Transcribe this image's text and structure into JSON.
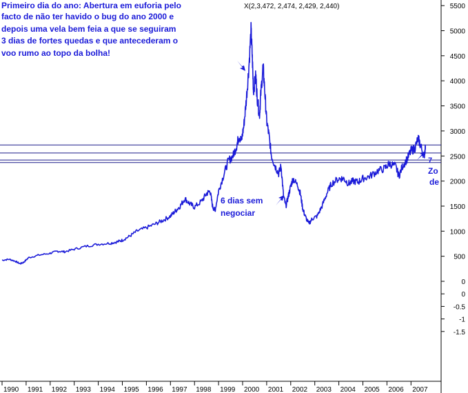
{
  "chart_data": {
    "type": "line",
    "title": "",
    "xlabel": "",
    "ylabel": "",
    "ohlc_readout": "X(2,3,472, 2,474, 2,429, 2,440)",
    "x_ticks": [
      "1990",
      "1991",
      "1992",
      "1993",
      "1994",
      "1995",
      "1996",
      "1997",
      "1998",
      "1999",
      "2000",
      "2001",
      "2002",
      "2003",
      "2004",
      "2005",
      "2006",
      "2007"
    ],
    "y_ticks_upper": [
      5500,
      5000,
      4500,
      4000,
      3500,
      3000,
      2500,
      2000,
      1500,
      1000,
      500,
      0
    ],
    "y_ticks_lower": [
      "0",
      "-0.5",
      "-1",
      "-1.5"
    ],
    "ylim": [
      -1.8,
      5600
    ],
    "series": [
      {
        "color": "#1a1ad8",
        "points": [
          [
            1990.0,
            420
          ],
          [
            1990.3,
            440
          ],
          [
            1990.55,
            400
          ],
          [
            1990.75,
            350
          ],
          [
            1990.9,
            380
          ],
          [
            1991.1,
            470
          ],
          [
            1991.5,
            520
          ],
          [
            1992.0,
            560
          ],
          [
            1992.3,
            600
          ],
          [
            1992.6,
            590
          ],
          [
            1993.0,
            640
          ],
          [
            1993.5,
            700
          ],
          [
            1994.0,
            740
          ],
          [
            1994.5,
            760
          ],
          [
            1994.8,
            790
          ],
          [
            1995.0,
            820
          ],
          [
            1995.3,
            900
          ],
          [
            1995.6,
            1000
          ],
          [
            1996.0,
            1070
          ],
          [
            1996.4,
            1150
          ],
          [
            1996.7,
            1220
          ],
          [
            1997.0,
            1300
          ],
          [
            1997.2,
            1400
          ],
          [
            1997.4,
            1500
          ],
          [
            1997.6,
            1650
          ],
          [
            1997.8,
            1550
          ],
          [
            1998.0,
            1480
          ],
          [
            1998.3,
            1600
          ],
          [
            1998.5,
            1750
          ],
          [
            1998.65,
            1800
          ],
          [
            1998.75,
            1500
          ],
          [
            1998.85,
            1400
          ],
          [
            1999.0,
            1800
          ],
          [
            1999.2,
            2100
          ],
          [
            1999.4,
            2400
          ],
          [
            1999.6,
            2500
          ],
          [
            1999.75,
            2700
          ],
          [
            1999.85,
            2900
          ],
          [
            1999.95,
            2800
          ],
          [
            2000.05,
            3100
          ],
          [
            2000.15,
            3600
          ],
          [
            2000.25,
            4200
          ],
          [
            2000.35,
            5000
          ],
          [
            2000.4,
            4500
          ],
          [
            2000.45,
            3800
          ],
          [
            2000.55,
            4100
          ],
          [
            2000.6,
            3700
          ],
          [
            2000.7,
            3300
          ],
          [
            2000.75,
            3700
          ],
          [
            2000.85,
            4300
          ],
          [
            2000.92,
            3800
          ],
          [
            2001.0,
            3200
          ],
          [
            2001.1,
            2900
          ],
          [
            2001.2,
            2500
          ],
          [
            2001.35,
            2300
          ],
          [
            2001.5,
            2150
          ],
          [
            2001.6,
            2300
          ],
          [
            2001.7,
            1700
          ],
          [
            2001.8,
            1500
          ],
          [
            2001.9,
            1700
          ],
          [
            2002.0,
            1900
          ],
          [
            2002.1,
            2050
          ],
          [
            2002.3,
            1900
          ],
          [
            2002.4,
            1750
          ],
          [
            2002.5,
            1450
          ],
          [
            2002.6,
            1300
          ],
          [
            2002.75,
            1150
          ],
          [
            2002.9,
            1250
          ],
          [
            2003.1,
            1300
          ],
          [
            2003.3,
            1500
          ],
          [
            2003.5,
            1750
          ],
          [
            2003.7,
            1950
          ],
          [
            2004.0,
            2050
          ],
          [
            2004.2,
            2050
          ],
          [
            2004.4,
            1950
          ],
          [
            2004.6,
            2000
          ],
          [
            2004.8,
            1980
          ],
          [
            2005.0,
            2050
          ],
          [
            2005.3,
            2100
          ],
          [
            2005.6,
            2200
          ],
          [
            2005.9,
            2250
          ],
          [
            2006.1,
            2350
          ],
          [
            2006.35,
            2300
          ],
          [
            2006.5,
            2100
          ],
          [
            2006.65,
            2300
          ],
          [
            2006.85,
            2450
          ],
          [
            2007.0,
            2600
          ],
          [
            2007.15,
            2650
          ],
          [
            2007.3,
            2850
          ],
          [
            2007.4,
            2700
          ],
          [
            2007.55,
            2500
          ],
          [
            2007.6,
            2700
          ]
        ]
      }
    ],
    "horizontal_lines": [
      2720,
      2560,
      2420,
      2370
    ],
    "annotations": {
      "top_left": [
        "Primeiro dia do ano: Abertura em euforia pelo",
        "facto de não ter havido o bug do ano 2000 e",
        "depois uma vela bem feia a que se seguiram",
        "3 dias de fortes quedas e que antecederam o",
        " voo rumo ao topo da bolha!"
      ],
      "mid": [
        "6 dias sem",
        "negociar"
      ],
      "right": [
        "Zo",
        "de"
      ],
      "zone_mark": "7"
    }
  }
}
